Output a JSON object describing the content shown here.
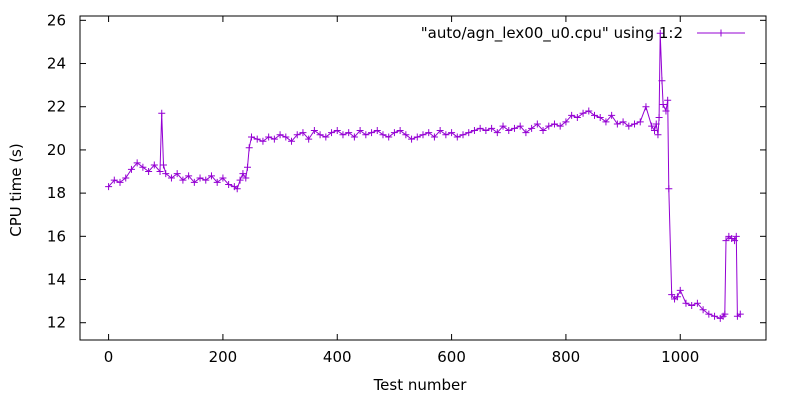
{
  "chart_data": {
    "type": "line",
    "xlabel": "Test number",
    "ylabel": "CPU time (s)",
    "xlim": [
      -50,
      1150
    ],
    "ylim": [
      11.2,
      26.2
    ],
    "xticks": [
      0,
      200,
      400,
      600,
      800,
      1000
    ],
    "yticks": [
      12,
      14,
      16,
      18,
      20,
      22,
      24,
      26
    ],
    "grid": false,
    "legend_position": "top-right",
    "series": [
      {
        "name": "\"auto/agn_lex00_u0.cpu\" using 1:2",
        "color": "#9400D3",
        "marker": "plus",
        "x": [
          0,
          10,
          20,
          30,
          40,
          50,
          60,
          70,
          80,
          90,
          93,
          96,
          100,
          110,
          120,
          130,
          140,
          150,
          160,
          170,
          180,
          190,
          200,
          210,
          220,
          225,
          230,
          235,
          240,
          243,
          246,
          250,
          260,
          270,
          280,
          290,
          300,
          310,
          320,
          330,
          340,
          350,
          360,
          370,
          380,
          390,
          400,
          410,
          420,
          430,
          440,
          450,
          460,
          470,
          480,
          490,
          500,
          510,
          520,
          530,
          540,
          550,
          560,
          570,
          580,
          590,
          600,
          610,
          620,
          630,
          640,
          650,
          660,
          670,
          680,
          690,
          700,
          710,
          720,
          730,
          740,
          750,
          760,
          770,
          780,
          790,
          800,
          810,
          820,
          830,
          840,
          850,
          860,
          870,
          880,
          890,
          900,
          910,
          920,
          930,
          940,
          950,
          955,
          958,
          961,
          963,
          965,
          968,
          970,
          975,
          978,
          980,
          985,
          990,
          995,
          1000,
          1010,
          1020,
          1030,
          1040,
          1050,
          1060,
          1070,
          1075,
          1078,
          1080,
          1085,
          1090,
          1095,
          1098,
          1100,
          1105
        ],
        "y": [
          18.3,
          18.6,
          18.5,
          18.7,
          19.1,
          19.4,
          19.2,
          19.0,
          19.3,
          19.0,
          21.7,
          19.3,
          18.9,
          18.7,
          18.9,
          18.6,
          18.8,
          18.5,
          18.7,
          18.6,
          18.8,
          18.5,
          18.7,
          18.4,
          18.3,
          18.2,
          18.6,
          18.9,
          18.7,
          19.2,
          20.1,
          20.6,
          20.5,
          20.4,
          20.6,
          20.5,
          20.7,
          20.6,
          20.4,
          20.7,
          20.8,
          20.5,
          20.9,
          20.7,
          20.6,
          20.8,
          20.9,
          20.7,
          20.8,
          20.6,
          20.9,
          20.7,
          20.8,
          20.9,
          20.7,
          20.6,
          20.8,
          20.9,
          20.7,
          20.5,
          20.6,
          20.7,
          20.8,
          20.6,
          20.9,
          20.7,
          20.8,
          20.6,
          20.7,
          20.8,
          20.9,
          21.0,
          20.9,
          21.0,
          20.8,
          21.1,
          20.9,
          21.0,
          21.1,
          20.8,
          21.0,
          21.2,
          20.9,
          21.1,
          21.2,
          21.1,
          21.3,
          21.6,
          21.5,
          21.7,
          21.8,
          21.6,
          21.5,
          21.3,
          21.6,
          21.2,
          21.3,
          21.1,
          21.2,
          21.3,
          22.0,
          21.1,
          20.9,
          21.2,
          20.7,
          21.5,
          25.4,
          23.2,
          22.1,
          21.8,
          22.3,
          18.2,
          13.3,
          13.1,
          13.2,
          13.5,
          12.9,
          12.8,
          12.9,
          12.6,
          12.4,
          12.3,
          12.2,
          12.3,
          12.4,
          15.8,
          16.0,
          15.9,
          15.8,
          16.0,
          12.3,
          12.4
        ]
      }
    ]
  }
}
